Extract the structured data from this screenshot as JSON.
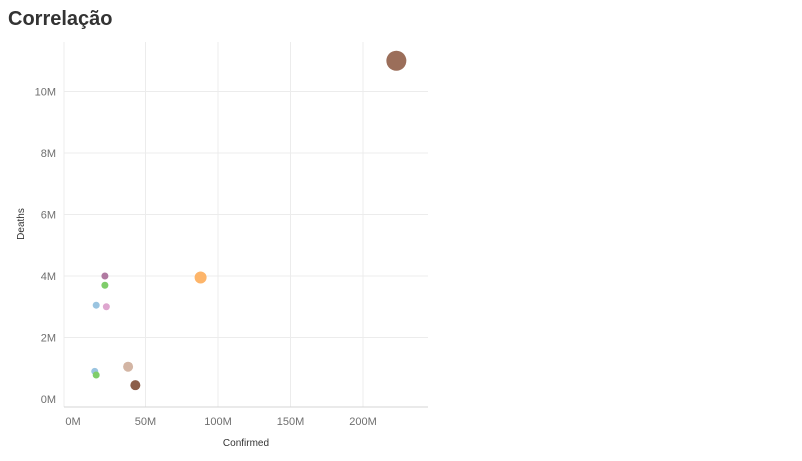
{
  "page": {
    "title": "Correlação"
  },
  "chart_data": {
    "type": "scatter",
    "xlabel": "Confirmed",
    "ylabel": "Deaths",
    "xlim": [
      0,
      230000000
    ],
    "ylim": [
      0,
      11500000
    ],
    "x_ticks": [
      {
        "value": 0,
        "label": "0M"
      },
      {
        "value": 50000000,
        "label": "50M"
      },
      {
        "value": 100000000,
        "label": "100M"
      },
      {
        "value": 150000000,
        "label": "150M"
      },
      {
        "value": 200000000,
        "label": "200M"
      }
    ],
    "y_ticks": [
      {
        "value": 0,
        "label": "0M"
      },
      {
        "value": 2000000,
        "label": "2M"
      },
      {
        "value": 4000000,
        "label": "4M"
      },
      {
        "value": 6000000,
        "label": "6M"
      },
      {
        "value": 8000000,
        "label": "8M"
      },
      {
        "value": 10000000,
        "label": "10M"
      }
    ],
    "grid": true,
    "points": [
      {
        "x": 223000000,
        "y": 11000000,
        "size": 3,
        "color": "#9b6e5a"
      },
      {
        "x": 88000000,
        "y": 3950000,
        "size": 2,
        "color": "#fdb56a"
      },
      {
        "x": 22000000,
        "y": 4000000,
        "size": 1,
        "color": "#b07aa1"
      },
      {
        "x": 22000000,
        "y": 3700000,
        "size": 1,
        "color": "#7fcd6a"
      },
      {
        "x": 16000000,
        "y": 3050000,
        "size": 1,
        "color": "#9ac4e0"
      },
      {
        "x": 23000000,
        "y": 3000000,
        "size": 1,
        "color": "#dea6cf"
      },
      {
        "x": 15000000,
        "y": 900000,
        "size": 1,
        "color": "#9ac4e0"
      },
      {
        "x": 16000000,
        "y": 780000,
        "size": 1,
        "color": "#7fcd6a"
      },
      {
        "x": 38000000,
        "y": 1050000,
        "size": 1.5,
        "color": "#d3b5a4"
      },
      {
        "x": 43000000,
        "y": 450000,
        "size": 1.5,
        "color": "#8c5f4a"
      }
    ]
  }
}
